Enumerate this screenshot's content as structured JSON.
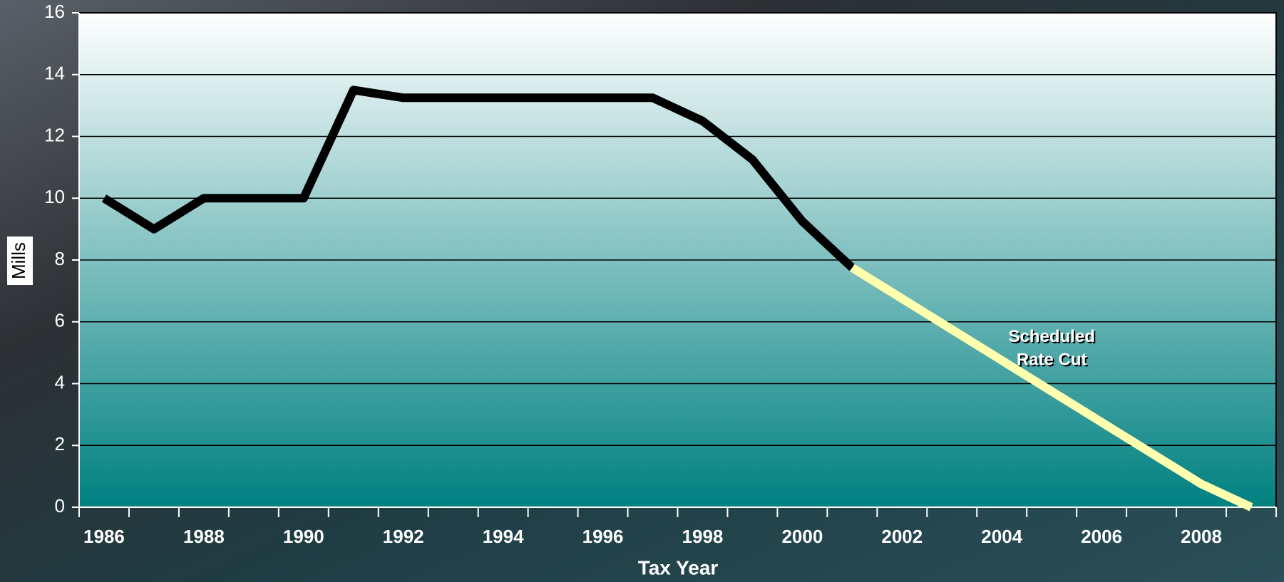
{
  "chart_data": {
    "type": "line",
    "x_label": "Tax Year",
    "y_label": "Mills",
    "categories": [
      "1986",
      null,
      "1988",
      null,
      "1990",
      null,
      "1992",
      null,
      "1994",
      null,
      "1996",
      null,
      "1998",
      null,
      "2000",
      null,
      "2002",
      null,
      "2004",
      null,
      "2006",
      null,
      "2008",
      null
    ],
    "series": [
      {
        "color": "#000000",
        "values": [
          10,
          9,
          10,
          10,
          10,
          13.5,
          13.25,
          13.25,
          13.25,
          13.25,
          13.25,
          13.25,
          12.5,
          11.25,
          9.25,
          7.75,
          null,
          null,
          null,
          null,
          null,
          null,
          null,
          null
        ]
      },
      {
        "color": "#ffffb0",
        "values": [
          null,
          null,
          null,
          null,
          null,
          null,
          null,
          null,
          null,
          null,
          null,
          null,
          null,
          null,
          null,
          7.75,
          6.75,
          5.75,
          4.75,
          3.75,
          2.75,
          1.75,
          0.75,
          0
        ]
      }
    ],
    "annotations": [
      {
        "text": "Scheduled",
        "category": 19,
        "y": 5.5
      },
      {
        "text": "Rate Cut",
        "category": 19,
        "y": 4.75
      }
    ],
    "ylim": [
      0,
      16
    ],
    "yticks": [
      0,
      2,
      4,
      6,
      8,
      10,
      12,
      14,
      16
    ],
    "grid": true
  }
}
